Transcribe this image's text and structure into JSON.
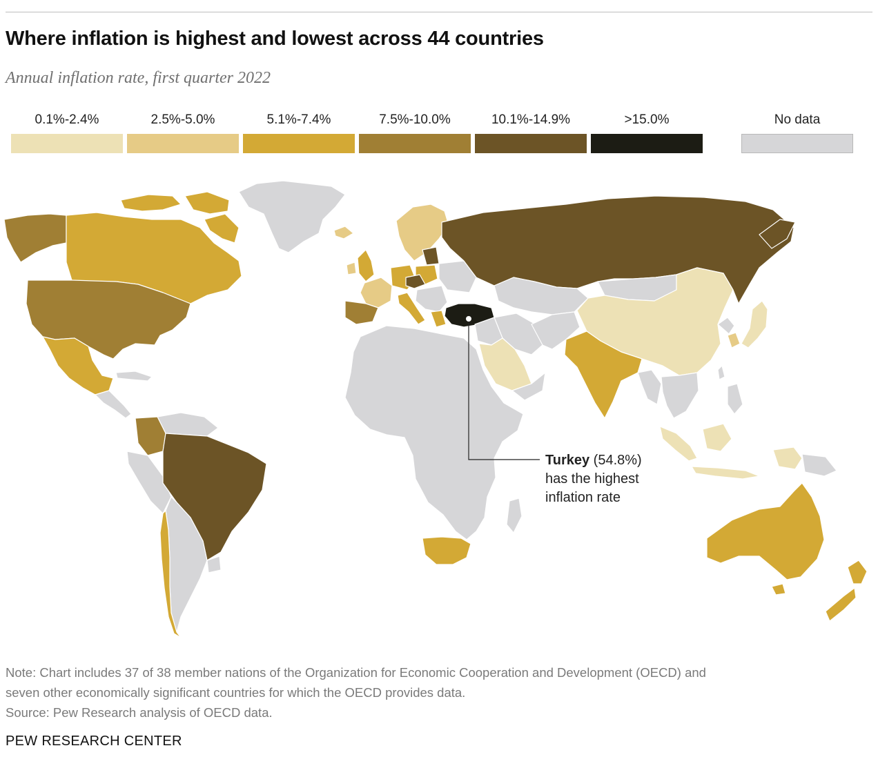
{
  "header": {
    "title": "Where inflation is highest and lowest across 44 countries",
    "subtitle": "Annual inflation rate, first quarter 2022"
  },
  "legend": {
    "items": [
      {
        "label": "0.1%-2.4%",
        "color": "#ede1b5"
      },
      {
        "label": "2.5%-5.0%",
        "color": "#e6cb86"
      },
      {
        "label": "5.1%-7.4%",
        "color": "#d3a935"
      },
      {
        "label": "7.5%-10.0%",
        "color": "#a07f34"
      },
      {
        "label": "10.1%-14.9%",
        "color": "#6c5426"
      },
      {
        "label": ">15.0%",
        "color": "#1c1c14"
      },
      {
        "label": "No data",
        "color": "#d6d6d8"
      }
    ]
  },
  "map": {
    "colors": {
      "no_data": "#d6d6d8",
      "border": "#ffffff",
      "ocean": "#ffffff"
    },
    "callout": {
      "country": "Turkey",
      "value": "(54.8%)",
      "line2": "has the highest",
      "line3": "inflation rate"
    },
    "regions": [
      {
        "name": "greenland",
        "bin": "no-data"
      },
      {
        "name": "canada",
        "bin": "5.1%-7.4%"
      },
      {
        "name": "alaska",
        "bin": "7.5%-10.0%"
      },
      {
        "name": "united-states",
        "bin": "7.5%-10.0%"
      },
      {
        "name": "mexico",
        "bin": "5.1%-7.4%"
      },
      {
        "name": "colombia",
        "bin": "7.5%-10.0%"
      },
      {
        "name": "brazil",
        "bin": "10.1%-14.9%"
      },
      {
        "name": "chile",
        "bin": "5.1%-7.4%"
      },
      {
        "name": "russia",
        "bin": "10.1%-14.9%"
      },
      {
        "name": "china",
        "bin": "0.1%-2.4%"
      },
      {
        "name": "india",
        "bin": "5.1%-7.4%"
      },
      {
        "name": "saudi-arabia",
        "bin": "0.1%-2.4%"
      },
      {
        "name": "turkey",
        "bin": ">15.0%"
      },
      {
        "name": "south-africa",
        "bin": "5.1%-7.4%"
      },
      {
        "name": "australia",
        "bin": "5.1%-7.4%"
      },
      {
        "name": "new-zealand",
        "bin": "5.1%-7.4%"
      },
      {
        "name": "indonesia",
        "bin": "0.1%-2.4%"
      },
      {
        "name": "japan",
        "bin": "0.1%-2.4%"
      },
      {
        "name": "south-korea",
        "bin": "2.5%-5.0%"
      },
      {
        "name": "spain",
        "bin": "7.5%-10.0%"
      },
      {
        "name": "france",
        "bin": "2.5%-5.0%"
      },
      {
        "name": "germany",
        "bin": "5.1%-7.4%"
      },
      {
        "name": "united-kingdom",
        "bin": "5.1%-7.4%"
      },
      {
        "name": "czech-republic",
        "bin": "10.1%-14.9%"
      },
      {
        "name": "nordics",
        "bin": "2.5%-5.0%"
      }
    ]
  },
  "footer": {
    "note_line1": "Note: Chart includes 37 of 38 member nations of the Organization for Economic Cooperation and Development (OECD) and",
    "note_line2": "seven other economically significant countries for which the OECD provides data.",
    "source": "Source: Pew Research analysis of OECD data.",
    "brand": "PEW RESEARCH CENTER"
  }
}
